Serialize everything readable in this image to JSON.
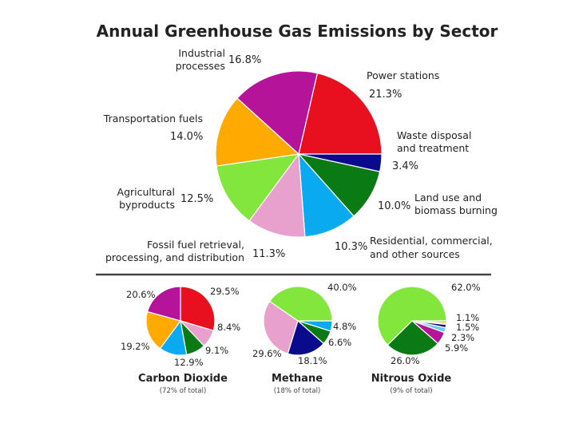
{
  "colors": {
    "industrial": "#b5139a",
    "power": "#e8101e",
    "waste": "#0a0a8c",
    "landuse": "#0a7a14",
    "residential": "#0aaaf0",
    "fossil": "#e8a0cc",
    "agricultural": "#82e63c",
    "transport": "#ffaa00",
    "lightblue": "#6ec8f0",
    "yellow": "#f0e600",
    "orange2": "#ff7000"
  },
  "chart_data": [
    {
      "type": "pie",
      "title": "Annual Greenhouse Gas Emissions by Sector",
      "slices": [
        {
          "label": "Power stations",
          "value": 21.3,
          "display": "21.3%",
          "color_key": "power"
        },
        {
          "label": "Waste disposal and treatment",
          "value": 3.4,
          "display": "3.4%",
          "color_key": "waste"
        },
        {
          "label": "Land use and biomass burning",
          "value": 10.0,
          "display": "10.0%",
          "color_key": "landuse"
        },
        {
          "label": "Residential, commercial, and other sources",
          "value": 10.3,
          "display": "10.3%",
          "color_key": "residential"
        },
        {
          "label": "Fossil fuel retrieval, processing, and distribution",
          "value": 11.3,
          "display": "11.3%",
          "color_key": "fossil"
        },
        {
          "label": "Agricultural byproducts",
          "value": 12.5,
          "display": "12.5%",
          "color_key": "agricultural"
        },
        {
          "label": "Transportation fuels",
          "value": 14.0,
          "display": "14.0%",
          "color_key": "transport"
        },
        {
          "label": "Industrial processes",
          "value": 16.8,
          "display": "16.8%",
          "color_key": "industrial"
        }
      ],
      "slice_labels": {
        "industrial": [
          "Industrial",
          "processes"
        ],
        "power": [
          "Power stations"
        ],
        "waste": [
          "Waste disposal",
          "and treatment"
        ],
        "landuse": [
          "Land use and",
          "biomass burning"
        ],
        "residential": [
          "Residential, commercial,",
          "and other sources"
        ],
        "fossil": [
          "Fossil fuel retrieval,",
          "processing, and distribution"
        ],
        "agricultural": [
          "Agricultural",
          "byproducts"
        ],
        "transport": [
          "Transportation fuels"
        ]
      }
    },
    {
      "type": "pie",
      "title": "Carbon Dioxide",
      "subtitle": "(72% of total)",
      "slices": [
        {
          "value": 29.5,
          "display": "29.5%",
          "color_key": "power"
        },
        {
          "value": 8.4,
          "display": "8.4%",
          "color_key": "fossil"
        },
        {
          "value": 9.1,
          "display": "9.1%",
          "color_key": "landuse"
        },
        {
          "value": 12.9,
          "display": "12.9%",
          "color_key": "residential"
        },
        {
          "value": 19.2,
          "display": "19.2%",
          "color_key": "transport"
        },
        {
          "value": 20.6,
          "display": "20.6%",
          "color_key": "industrial"
        }
      ]
    },
    {
      "type": "pie",
      "title": "Methane",
      "subtitle": "(18% of total)",
      "slices": [
        {
          "value": 4.8,
          "display": "4.8%",
          "color_key": "residential"
        },
        {
          "value": 6.6,
          "display": "6.6%",
          "color_key": "landuse"
        },
        {
          "value": 18.1,
          "display": "18.1%",
          "color_key": "waste"
        },
        {
          "value": 29.6,
          "display": "29.6%",
          "color_key": "fossil"
        },
        {
          "value": 40.0,
          "display": "40.0%",
          "color_key": "agricultural"
        }
      ]
    },
    {
      "type": "pie",
      "title": "Nitrous Oxide",
      "subtitle": "(9% of total)",
      "slices": [
        {
          "value": 1.1,
          "display": "1.1%",
          "color_key": "transport"
        },
        {
          "value": 0.6,
          "display": "",
          "color_key": "power"
        },
        {
          "value": 1.5,
          "display": "1.5%",
          "color_key": "waste"
        },
        {
          "value": 2.3,
          "display": "2.3%",
          "color_key": "lightblue"
        },
        {
          "value": 5.9,
          "display": "5.9%",
          "color_key": "industrial"
        },
        {
          "value": 26.0,
          "display": "26.0%",
          "color_key": "landuse"
        },
        {
          "value": 62.0,
          "display": "62.0%",
          "color_key": "agricultural"
        }
      ]
    }
  ]
}
